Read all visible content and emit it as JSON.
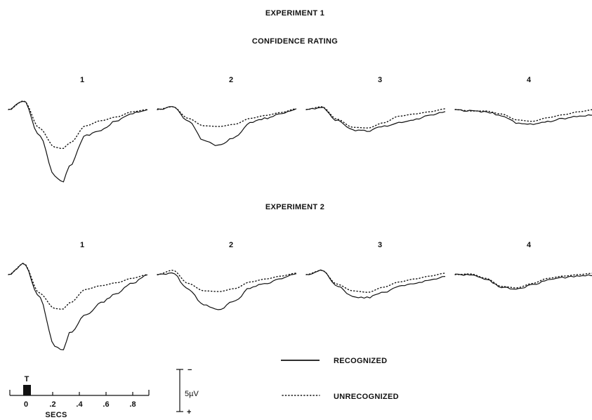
{
  "experiment1_label": "EXPERIMENT 1",
  "subtitle": "CONFIDENCE RATING",
  "experiment2_label": "EXPERIMENT 2",
  "legend": {
    "recognized": "RECOGNIZED",
    "unrecognized": "UNRECOGNIZED"
  },
  "time_axis": {
    "marker_label": "T",
    "ticks": [
      "0",
      ".2",
      ".4",
      ".6",
      ".8"
    ],
    "unit_label": "SECS"
  },
  "voltage_scale": {
    "top_label": "−",
    "value_label": "5µV",
    "bottom_label": "+"
  },
  "colors": {
    "ink": "#111111",
    "background": "#ffffff"
  },
  "chart_data": [
    {
      "type": "line",
      "group": "EXPERIMENT 1",
      "panel": "1",
      "x": [
        0,
        0.1,
        0.2,
        0.3,
        0.35,
        0.4,
        0.5,
        0.6,
        0.7,
        0.8,
        0.9
      ],
      "series": [
        {
          "name": "RECOGNIZED",
          "style": "solid",
          "values": [
            0,
            1.2,
            -3.5,
            -9,
            -9.8,
            -7.5,
            -3.5,
            -2.8,
            -1.5,
            -0.5,
            0
          ]
        },
        {
          "name": "UNRECOGNIZED",
          "style": "dotted",
          "values": [
            0,
            1.2,
            -2.5,
            -5.1,
            -5.3,
            -4.5,
            -2.2,
            -1.5,
            -1,
            -0.3,
            0
          ]
        }
      ]
    },
    {
      "type": "line",
      "group": "EXPERIMENT 1",
      "panel": "2",
      "x": [
        0,
        0.1,
        0.2,
        0.3,
        0.4,
        0.5,
        0.6,
        0.7,
        0.8,
        0.9
      ],
      "series": [
        {
          "name": "RECOGNIZED",
          "style": "solid",
          "values": [
            0,
            0.4,
            -1.5,
            -4.2,
            -4.9,
            -3.8,
            -1.8,
            -1.2,
            -0.6,
            0.1
          ]
        },
        {
          "name": "UNRECOGNIZED",
          "style": "dotted",
          "values": [
            0,
            0.4,
            -1.2,
            -2.2,
            -2.3,
            -2,
            -1.2,
            -0.8,
            -0.4,
            0.1
          ]
        }
      ]
    },
    {
      "type": "line",
      "group": "EXPERIMENT 1",
      "panel": "3",
      "x": [
        0,
        0.1,
        0.2,
        0.3,
        0.4,
        0.5,
        0.6,
        0.7,
        0.8,
        0.9
      ],
      "series": [
        {
          "name": "RECOGNIZED",
          "style": "solid",
          "values": [
            0,
            0.3,
            -1.5,
            -2.8,
            -2.9,
            -2.3,
            -1.8,
            -1.4,
            -0.8,
            -0.3
          ]
        },
        {
          "name": "UNRECOGNIZED",
          "style": "dotted",
          "values": [
            0,
            0.4,
            -1.3,
            -2.4,
            -2.5,
            -1.8,
            -0.9,
            -0.6,
            -0.3,
            0.1
          ]
        }
      ]
    },
    {
      "type": "line",
      "group": "EXPERIMENT 1",
      "panel": "4",
      "x": [
        0,
        0.1,
        0.2,
        0.3,
        0.4,
        0.5,
        0.6,
        0.7,
        0.8,
        0.9
      ],
      "series": [
        {
          "name": "RECOGNIZED",
          "style": "solid",
          "values": [
            0,
            -0.2,
            -0.3,
            -0.8,
            -1.8,
            -2,
            -1.6,
            -1.2,
            -0.9,
            -0.7
          ]
        },
        {
          "name": "UNRECOGNIZED",
          "style": "dotted",
          "values": [
            0,
            -0.2,
            -0.2,
            -0.6,
            -1.4,
            -1.6,
            -1.1,
            -0.7,
            -0.3,
            0
          ]
        }
      ]
    },
    {
      "type": "line",
      "group": "EXPERIMENT 2",
      "panel": "1",
      "x": [
        0,
        0.1,
        0.2,
        0.3,
        0.35,
        0.4,
        0.5,
        0.6,
        0.7,
        0.8,
        0.9
      ],
      "series": [
        {
          "name": "RECOGNIZED",
          "style": "solid",
          "values": [
            0,
            1.5,
            -3,
            -9.8,
            -10.3,
            -7.8,
            -5.5,
            -3.8,
            -2.5,
            -1.2,
            0
          ]
        },
        {
          "name": "UNRECOGNIZED",
          "style": "dotted",
          "values": [
            0,
            1.5,
            -2.5,
            -4.6,
            -4.7,
            -3.8,
            -2,
            -1.5,
            -1.1,
            -0.5,
            0
          ]
        }
      ]
    },
    {
      "type": "line",
      "group": "EXPERIMENT 2",
      "panel": "2",
      "x": [
        0,
        0.1,
        0.2,
        0.3,
        0.4,
        0.5,
        0.6,
        0.7,
        0.8,
        0.9
      ],
      "series": [
        {
          "name": "RECOGNIZED",
          "style": "solid",
          "values": [
            0,
            0.2,
            -2,
            -4.1,
            -4.7,
            -3.6,
            -1.8,
            -1.2,
            -0.6,
            0.1
          ]
        },
        {
          "name": "UNRECOGNIZED",
          "style": "dotted",
          "values": [
            0,
            0.6,
            -1.2,
            -2.2,
            -2.3,
            -1.9,
            -1,
            -0.6,
            -0.2,
            0.2
          ]
        }
      ]
    },
    {
      "type": "line",
      "group": "EXPERIMENT 2",
      "panel": "3",
      "x": [
        0,
        0.1,
        0.2,
        0.3,
        0.4,
        0.5,
        0.6,
        0.7,
        0.8,
        0.9
      ],
      "series": [
        {
          "name": "RECOGNIZED",
          "style": "solid",
          "values": [
            0,
            0.6,
            -1.5,
            -3,
            -3.1,
            -2.4,
            -1.6,
            -1.2,
            -0.7,
            -0.3
          ]
        },
        {
          "name": "UNRECOGNIZED",
          "style": "dotted",
          "values": [
            0,
            0.6,
            -1.3,
            -2.2,
            -2.4,
            -1.7,
            -1,
            -0.6,
            -0.2,
            0.2
          ]
        }
      ]
    },
    {
      "type": "line",
      "group": "EXPERIMENT 2",
      "panel": "4",
      "x": [
        0,
        0.1,
        0.2,
        0.3,
        0.4,
        0.5,
        0.6,
        0.7,
        0.8,
        0.9
      ],
      "series": [
        {
          "name": "RECOGNIZED",
          "style": "solid",
          "values": [
            0,
            0,
            -0.6,
            -1.7,
            -2,
            -1.4,
            -0.7,
            -0.4,
            -0.2,
            -0.1
          ]
        },
        {
          "name": "UNRECOGNIZED",
          "style": "dotted",
          "values": [
            0,
            0.1,
            -0.5,
            -1.6,
            -1.8,
            -1.2,
            -0.5,
            -0.2,
            0,
            0.2
          ]
        }
      ]
    }
  ]
}
